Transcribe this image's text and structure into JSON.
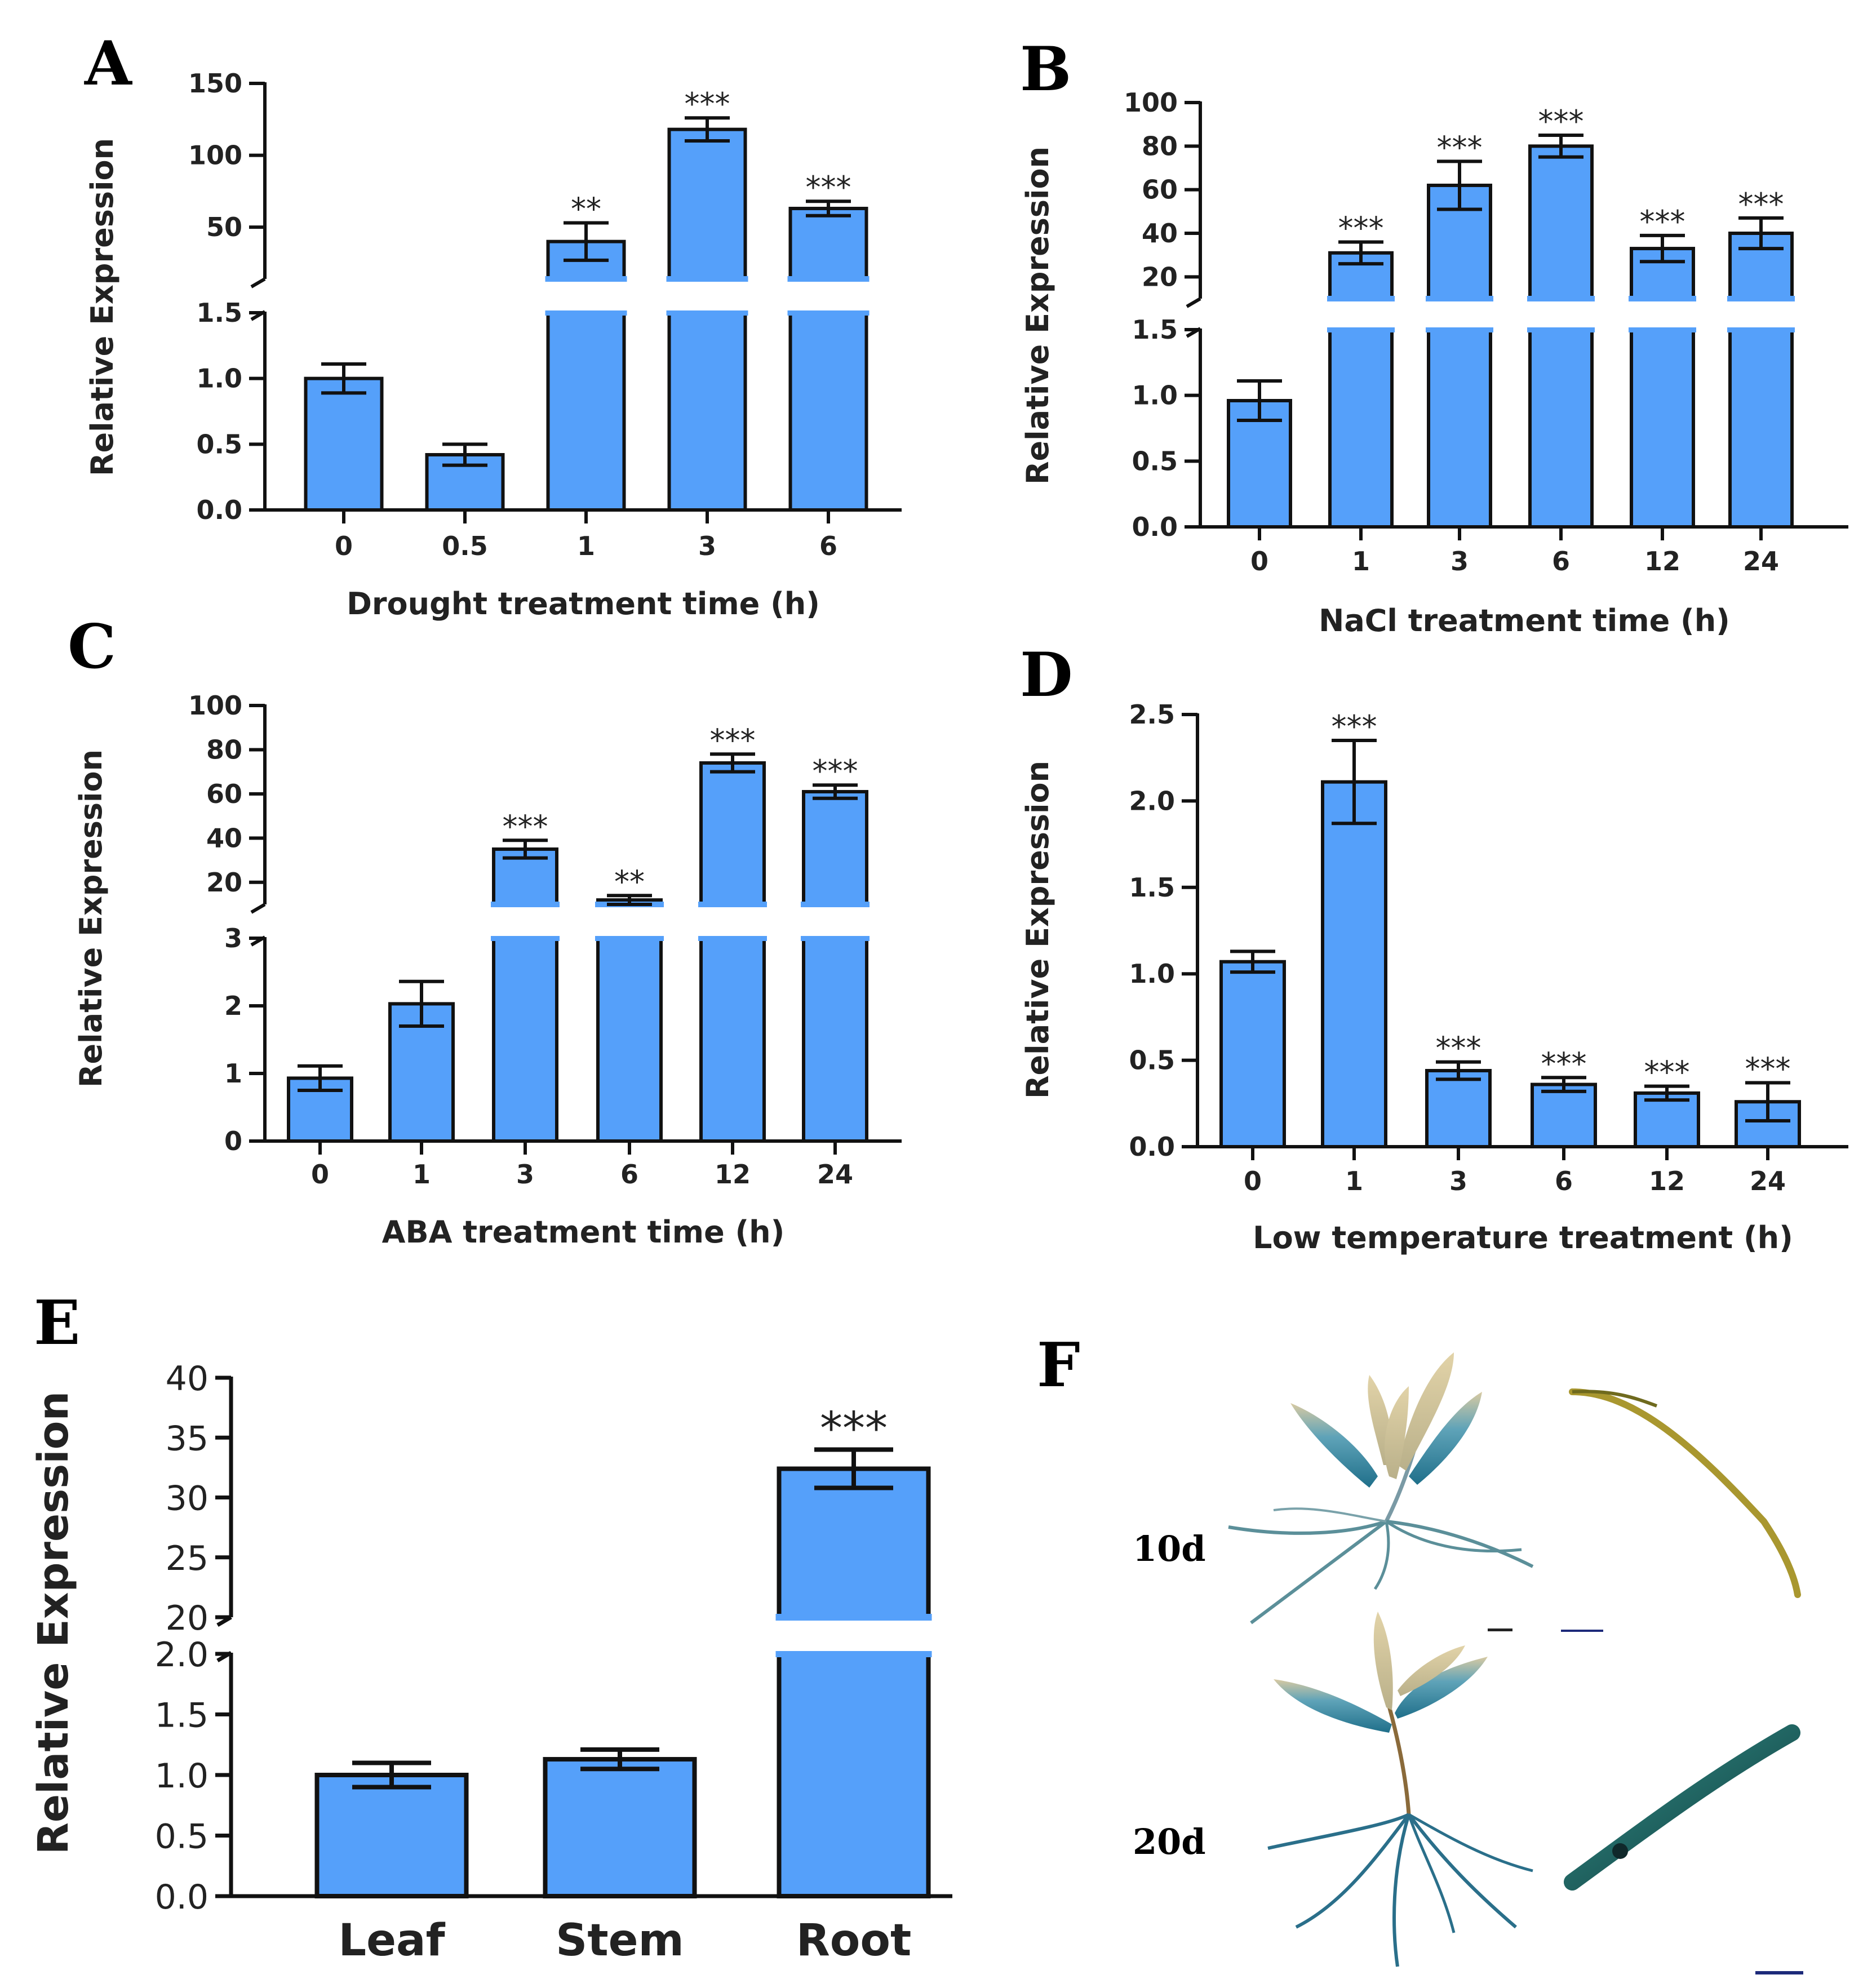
{
  "chart_data": [
    {
      "panel": "A",
      "type": "bar",
      "categories": [
        "0",
        "0.5",
        "1",
        "3",
        "6"
      ],
      "values": [
        1.0,
        0.42,
        40,
        118,
        63
      ],
      "errors": [
        0.11,
        0.08,
        13,
        8,
        5
      ],
      "significance": [
        "",
        "",
        "**",
        "***",
        "***"
      ],
      "xlabel": "Drought treatment time (h)",
      "ylabel": "Relative Expression",
      "axis_break": {
        "lower": {
          "range": [
            0,
            1.5
          ],
          "ticks": [
            "0.0",
            "0.5",
            "1.0",
            "1.5"
          ]
        },
        "upper": {
          "range": [
            14,
            150
          ],
          "ticks": [
            "50",
            "100",
            "150"
          ]
        }
      }
    },
    {
      "panel": "B",
      "type": "bar",
      "categories": [
        "0",
        "1",
        "3",
        "6",
        "12",
        "24"
      ],
      "values": [
        0.96,
        31,
        62,
        80,
        33,
        40
      ],
      "errors": [
        0.15,
        5,
        11,
        5,
        6,
        7
      ],
      "significance": [
        "",
        "***",
        "***",
        "***",
        "***",
        "***"
      ],
      "xlabel": "NaCl treatment time (h)",
      "ylabel": "Relative Expression",
      "axis_break": {
        "lower": {
          "range": [
            0,
            1.5
          ],
          "ticks": [
            "0.0",
            "0.5",
            "1.0",
            "1.5"
          ]
        },
        "upper": {
          "range": [
            10,
            100
          ],
          "ticks": [
            "20",
            "40",
            "60",
            "80",
            "100"
          ]
        }
      }
    },
    {
      "panel": "C",
      "type": "bar",
      "categories": [
        "0",
        "1",
        "3",
        "6",
        "12",
        "24"
      ],
      "values": [
        0.93,
        2.03,
        35,
        12,
        74,
        61
      ],
      "errors": [
        0.18,
        0.33,
        4,
        2,
        4,
        3
      ],
      "significance": [
        "",
        "",
        "***",
        "**",
        "***",
        "***"
      ],
      "xlabel": "ABA treatment time (h)",
      "ylabel": "Relative Expression",
      "axis_break": {
        "lower": {
          "range": [
            0,
            3
          ],
          "ticks": [
            "0",
            "1",
            "2",
            "3"
          ]
        },
        "upper": {
          "range": [
            10,
            100
          ],
          "ticks": [
            "20",
            "40",
            "60",
            "80",
            "100"
          ]
        }
      }
    },
    {
      "panel": "D",
      "type": "bar",
      "categories": [
        "0",
        "1",
        "3",
        "6",
        "12",
        "24"
      ],
      "values": [
        1.07,
        2.11,
        0.44,
        0.36,
        0.31,
        0.26
      ],
      "errors": [
        0.06,
        0.24,
        0.05,
        0.04,
        0.04,
        0.11
      ],
      "significance": [
        "",
        "***",
        "***",
        "***",
        "***",
        "***"
      ],
      "xlabel": "Low temperature treatment (h)",
      "ylabel": "Relative Expression",
      "ylim": [
        0,
        2.5
      ],
      "ticks": [
        "0.0",
        "0.5",
        "1.0",
        "1.5",
        "2.0",
        "2.5"
      ]
    },
    {
      "panel": "E",
      "type": "bar",
      "categories": [
        "Leaf",
        "Stem",
        "Root"
      ],
      "values": [
        1.0,
        1.13,
        32.4
      ],
      "errors": [
        0.1,
        0.08,
        1.6
      ],
      "significance": [
        "",
        "",
        "***"
      ],
      "xlabel": "",
      "ylabel": "Relative Expression",
      "axis_break": {
        "lower": {
          "range": [
            0,
            2.0
          ],
          "ticks": [
            "0.0",
            "0.5",
            "1.0",
            "1.5",
            "2.0"
          ]
        },
        "upper": {
          "range": [
            20,
            40
          ],
          "ticks": [
            "20",
            "25",
            "30",
            "35",
            "40"
          ]
        }
      }
    }
  ],
  "panel_f": {
    "letter": "F",
    "rows": [
      {
        "label": "10d"
      },
      {
        "label": "20d"
      }
    ]
  },
  "colors": {
    "bar": "#55a0fa",
    "axis": "#111111",
    "background": "#ffffff"
  }
}
